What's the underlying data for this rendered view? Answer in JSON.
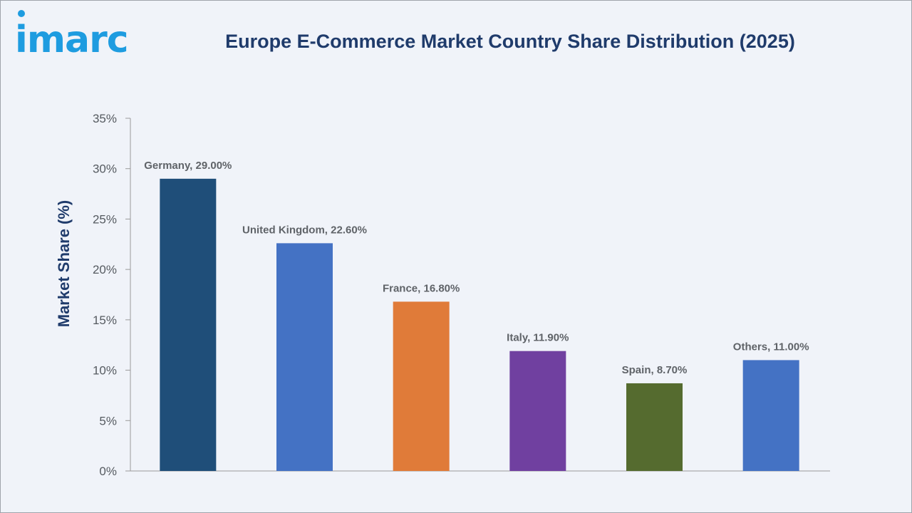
{
  "header": {
    "logo_text": "imarc",
    "title": "Europe E-Commerce Market Country Share Distribution (2025)"
  },
  "chart_data": {
    "type": "bar",
    "title": "Europe E-Commerce Market Country Share Distribution (2025)",
    "xlabel": "",
    "ylabel": "Market Share (%)",
    "ylim": [
      0,
      35
    ],
    "yticks": [
      0,
      5,
      10,
      15,
      20,
      25,
      30,
      35
    ],
    "ytick_labels": [
      "0%",
      "5%",
      "10%",
      "15%",
      "20%",
      "25%",
      "30%",
      "35%"
    ],
    "grid": false,
    "legend": "none",
    "categories": [
      "Germany",
      "United Kingdom",
      "France",
      "Italy",
      "Spain",
      "Others"
    ],
    "values": [
      29.0,
      22.6,
      16.8,
      11.9,
      8.7,
      11.0
    ],
    "data_labels": [
      "Germany, 29.00%",
      "United Kingdom, 22.60%",
      "France, 16.80%",
      "Italy, 11.90%",
      "Spain, 8.70%",
      "Others, 11.00%"
    ],
    "colors": [
      "#1f4e79",
      "#4472c4",
      "#e07b39",
      "#7040a0",
      "#556b2f",
      "#4472c4"
    ]
  }
}
